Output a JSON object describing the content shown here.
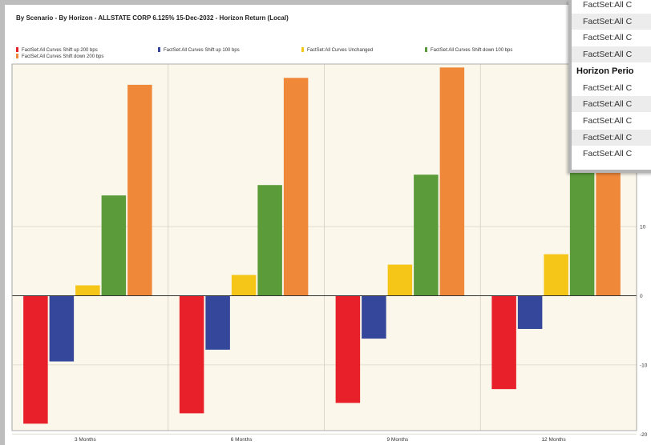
{
  "chart_data": {
    "type": "bar",
    "title": "By Scenario - By Horizon - ALLSTATE CORP 6.125% 15-Dec-2032 - Horizon Return (Local)",
    "categories": [
      "3 Months",
      "6 Months",
      "9 Months",
      "12 Months"
    ],
    "series": [
      {
        "name": "FactSet:All Curves Shift up 200 bps",
        "color": "#e8202a",
        "values": [
          -18.5,
          -17,
          -15.5,
          -13.5
        ]
      },
      {
        "name": "FactSet:All Curves Shift up 100 bps",
        "color": "#34479b",
        "values": [
          -9.5,
          -7.8,
          -6.2,
          -4.8
        ]
      },
      {
        "name": "FactSet:All Curves Unchanged",
        "color": "#f5c518",
        "values": [
          1.5,
          3,
          4.5,
          6
        ]
      },
      {
        "name": "FactSet:All Curves Shift down 100 bps",
        "color": "#5b9b3a",
        "values": [
          14.5,
          16,
          17.5,
          19
        ]
      },
      {
        "name": "FactSet:All Curves Shift down 200 bps",
        "color": "#f0883a",
        "values": [
          30.5,
          31.5,
          33,
          34.5
        ]
      }
    ],
    "y_ticks": [
      "10",
      "0",
      "-10",
      "-20"
    ],
    "ylim": [
      -19.5,
      33.5
    ],
    "grid": true,
    "legend_position": "top-left"
  },
  "overlay": {
    "rows": [
      {
        "text": "FactSet:All C",
        "kind": "item"
      },
      {
        "text": "FactSet:All C",
        "kind": "item"
      },
      {
        "text": "FactSet:All C",
        "kind": "item"
      },
      {
        "text": "FactSet:All C",
        "kind": "item"
      },
      {
        "text": "Horizon Perio",
        "kind": "header"
      },
      {
        "text": "FactSet:All C",
        "kind": "item"
      },
      {
        "text": "FactSet:All C",
        "kind": "item"
      },
      {
        "text": "FactSet:All C",
        "kind": "item"
      },
      {
        "text": "FactSet:All C",
        "kind": "item"
      },
      {
        "text": "FactSet:All C",
        "kind": "item"
      }
    ]
  }
}
